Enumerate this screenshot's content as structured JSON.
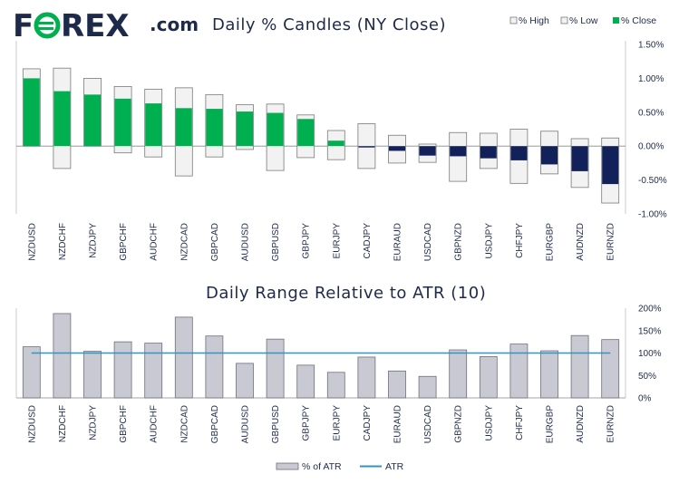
{
  "brand": {
    "name_pre": "F",
    "name_post": "REX",
    "suffix": ".com",
    "color": "#1e2a4a",
    "accent": "#00b050"
  },
  "chart_data": [
    {
      "type": "bar",
      "title": "Daily % Candles (NY Close)",
      "legend": [
        "% High",
        "% Low",
        "% Close"
      ],
      "legend_position": "top-right",
      "categories": [
        "NZDUSD",
        "NZDCHF",
        "NZDJPY",
        "GBPCHF",
        "AUDCHF",
        "NZDCAD",
        "GBPCAD",
        "AUDUSD",
        "GBPUSD",
        "GBPJPY",
        "EURJPY",
        "CADJPY",
        "EURAUD",
        "USDCAD",
        "GBPNZD",
        "USDJPY",
        "CHFJPY",
        "EURGBP",
        "AUDNZD",
        "EURNZD"
      ],
      "series": [
        {
          "name": "% High",
          "values": [
            1.14,
            1.15,
            1.0,
            0.88,
            0.84,
            0.86,
            0.76,
            0.61,
            0.62,
            0.46,
            0.23,
            0.33,
            0.16,
            0.03,
            0.2,
            0.19,
            0.25,
            0.22,
            0.11,
            0.12
          ]
        },
        {
          "name": "% Low",
          "values": [
            0.0,
            -0.33,
            0.0,
            -0.1,
            -0.16,
            -0.44,
            -0.16,
            -0.05,
            -0.36,
            -0.17,
            -0.2,
            -0.33,
            -0.25,
            -0.24,
            -0.52,
            -0.33,
            -0.55,
            -0.41,
            -0.61,
            -0.84
          ]
        },
        {
          "name": "% Close",
          "values": [
            1.0,
            0.81,
            0.76,
            0.7,
            0.63,
            0.56,
            0.55,
            0.51,
            0.49,
            0.4,
            0.08,
            -0.02,
            -0.07,
            -0.14,
            -0.15,
            -0.18,
            -0.21,
            -0.27,
            -0.37,
            -0.56
          ]
        }
      ],
      "yticks": [
        "1.50%",
        "1.00%",
        "0.50%",
        "0.00%",
        "-0.50%",
        "-1.00%"
      ],
      "ylim": [
        -1.0,
        1.5
      ],
      "colors": {
        "up": "#00b050",
        "down": "#13215a",
        "range_fill": "#f2f2f2",
        "range_stroke": "#7a7a7a"
      }
    },
    {
      "type": "bar",
      "title": "Daily Range Relative to ATR (10)",
      "legend": [
        "% of ATR",
        "ATR"
      ],
      "legend_position": "bottom",
      "categories": [
        "NZDUSD",
        "NZDCHF",
        "NZDJPY",
        "GBPCHF",
        "AUDCHF",
        "NZDCAD",
        "GBPCAD",
        "AUDUSD",
        "GBPUSD",
        "GBPJPY",
        "EURJPY",
        "CADJPY",
        "EURAUD",
        "USDCAD",
        "GBPNZD",
        "USDJPY",
        "CHFJPY",
        "EURGBP",
        "AUDNZD",
        "EURNZD"
      ],
      "series": [
        {
          "name": "% of ATR",
          "values": [
            114,
            188,
            104,
            125,
            122,
            180,
            138,
            77,
            131,
            73,
            57,
            91,
            60,
            48,
            107,
            92,
            120,
            105,
            139,
            130
          ]
        },
        {
          "name": "ATR",
          "values": [
            100,
            100,
            100,
            100,
            100,
            100,
            100,
            100,
            100,
            100,
            100,
            100,
            100,
            100,
            100,
            100,
            100,
            100,
            100,
            100
          ]
        }
      ],
      "yticks": [
        "200%",
        "150%",
        "100%",
        "50%",
        "0%"
      ],
      "ylim": [
        0,
        200
      ],
      "colors": {
        "bar_fill": "#c9c9d3",
        "bar_stroke": "#6e6e7a",
        "atr_line": "#2e95c6"
      }
    }
  ]
}
